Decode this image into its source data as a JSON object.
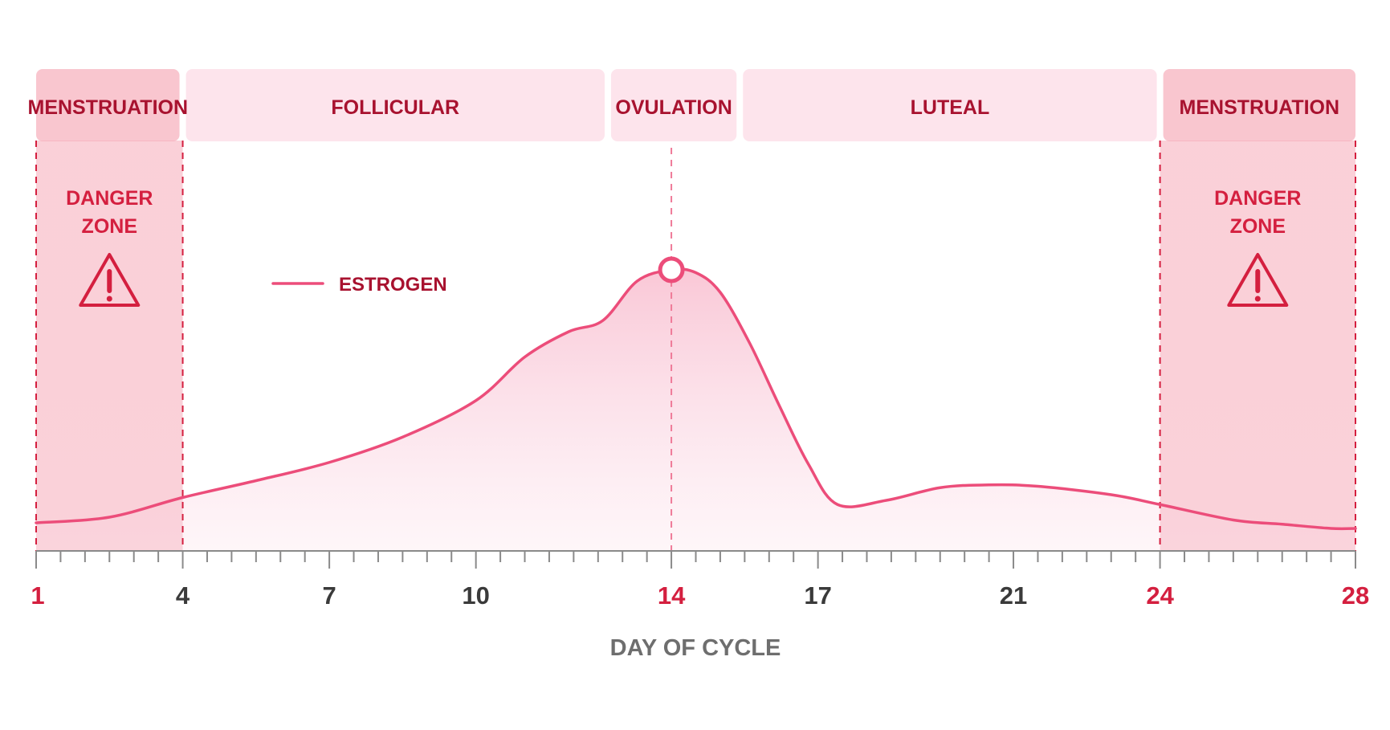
{
  "chart_data": {
    "type": "area",
    "xlabel": "DAY OF CYCLE",
    "xlim": [
      1,
      28
    ],
    "x_ticks": [
      1,
      4,
      7,
      10,
      14,
      17,
      21,
      24,
      28
    ],
    "highlight_ticks": [
      1,
      14,
      24,
      28
    ],
    "legend": {
      "placement": "top-left",
      "entries": [
        "ESTROGEN"
      ]
    },
    "phases": [
      {
        "label": "MENSTRUATION",
        "start": 1,
        "end": 4,
        "danger": true
      },
      {
        "label": "FOLLICULAR",
        "start": 4,
        "end": 12.7,
        "danger": false
      },
      {
        "label": "OVULATION",
        "start": 12.7,
        "end": 15.4,
        "danger": false
      },
      {
        "label": "LUTEAL",
        "start": 15.4,
        "end": 24,
        "danger": false
      },
      {
        "label": "MENSTRUATION",
        "start": 24,
        "end": 28,
        "danger": true
      }
    ],
    "danger_label_lines": [
      "DANGER",
      "ZONE"
    ],
    "ovulation_day": 14,
    "series": [
      {
        "name": "ESTROGEN",
        "color": "#ec4d7a",
        "x": [
          1,
          2.5,
          4,
          5.5,
          7,
          8.5,
          10,
          11,
          11.9,
          12.6,
          13.3,
          14,
          14.5,
          15,
          15.6,
          16.2,
          16.8,
          17.4,
          18.4,
          19.5,
          20.5,
          21.5,
          23,
          24,
          25.5,
          26.5,
          27.5,
          28
        ],
        "values": [
          10,
          12,
          19,
          25,
          31.5,
          40.5,
          53.5,
          69,
          78,
          82,
          96,
          100,
          99,
          92,
          74,
          52,
          31,
          16.5,
          18,
          22.5,
          23.5,
          23,
          20,
          16.5,
          11,
          9.5,
          8,
          8
        ]
      }
    ]
  },
  "colors": {
    "danger_red": "#d41f3f",
    "dark_red": "#a8122f",
    "pink": "#ec4d7a",
    "tick_dark": "#3a3a3a",
    "axis_title": "#6e6e6e"
  },
  "icons": {
    "danger": "warning-triangle-icon"
  }
}
